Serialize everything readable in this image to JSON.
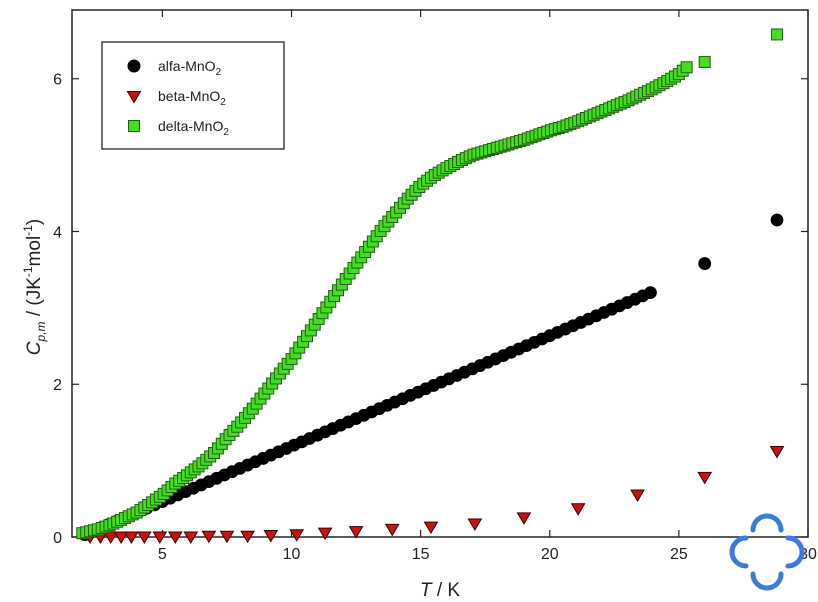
{
  "chart_data": {
    "type": "scatter",
    "xlim": [
      1.5,
      30
    ],
    "ylim": [
      0,
      6.9
    ],
    "x_ticks": [
      5,
      10,
      15,
      20,
      25,
      30
    ],
    "y_ticks": [
      0,
      2,
      4,
      6
    ],
    "grid": false,
    "legend_placement": "top-left",
    "xlabel": {
      "italic": "T",
      "rest": " / K"
    },
    "ylabel": {
      "italic": "C",
      "sub": "p,m",
      "rest": " / (JK",
      "sup1": "-1",
      "mid": "mol",
      "sup2": "-1",
      "end": ")"
    },
    "series": [
      {
        "name": "alfa-MnO2",
        "label_main": "alfa-MnO",
        "label_sub": "2",
        "marker": "circle",
        "color": "#000000",
        "segment": {
          "x_from": 2.0,
          "x_to": 23.9,
          "y_from": 0.03,
          "y_to": 3.2,
          "curve": "linear",
          "step": 0.3
        },
        "points": [
          [
            26.0,
            3.58
          ],
          [
            28.8,
            4.15
          ]
        ]
      },
      {
        "name": "beta-MnO2",
        "label_main": "beta-MnO",
        "label_sub": "2",
        "marker": "triangle-down",
        "color": "#cc1111",
        "points": [
          [
            2.2,
            0.0
          ],
          [
            2.6,
            0.0
          ],
          [
            3.0,
            0.0
          ],
          [
            3.4,
            0.0
          ],
          [
            3.8,
            0.0
          ],
          [
            4.3,
            0.0
          ],
          [
            4.9,
            0.0
          ],
          [
            5.5,
            0.0
          ],
          [
            6.1,
            0.0
          ],
          [
            6.8,
            0.01
          ],
          [
            7.5,
            0.01
          ],
          [
            8.3,
            0.01
          ],
          [
            9.2,
            0.02
          ],
          [
            10.2,
            0.03
          ],
          [
            11.3,
            0.05
          ],
          [
            12.5,
            0.07
          ],
          [
            13.9,
            0.1
          ],
          [
            15.4,
            0.13
          ],
          [
            17.1,
            0.17
          ],
          [
            19.0,
            0.25
          ],
          [
            21.1,
            0.37
          ],
          [
            23.4,
            0.55
          ],
          [
            26.0,
            0.78
          ],
          [
            28.8,
            1.12
          ]
        ]
      },
      {
        "name": "delta-MnO2",
        "label_main": "delta-MnO",
        "label_sub": "2",
        "marker": "square",
        "color": "#44dd22",
        "curve": [
          [
            1.9,
            0.05
          ],
          [
            2.5,
            0.1
          ],
          [
            3.0,
            0.16
          ],
          [
            3.5,
            0.24
          ],
          [
            4.0,
            0.32
          ],
          [
            4.5,
            0.43
          ],
          [
            5.0,
            0.55
          ],
          [
            5.5,
            0.7
          ],
          [
            6.0,
            0.82
          ],
          [
            6.5,
            0.95
          ],
          [
            7.0,
            1.1
          ],
          [
            7.5,
            1.3
          ],
          [
            8.0,
            1.48
          ],
          [
            8.5,
            1.68
          ],
          [
            9.0,
            1.9
          ],
          [
            9.5,
            2.12
          ],
          [
            10.0,
            2.33
          ],
          [
            10.5,
            2.58
          ],
          [
            11.0,
            2.83
          ],
          [
            11.5,
            3.08
          ],
          [
            12.0,
            3.33
          ],
          [
            12.5,
            3.57
          ],
          [
            13.0,
            3.8
          ],
          [
            13.5,
            4.03
          ],
          [
            14.0,
            4.23
          ],
          [
            14.5,
            4.43
          ],
          [
            15.0,
            4.6
          ],
          [
            15.5,
            4.73
          ],
          [
            16.0,
            4.83
          ],
          [
            16.5,
            4.92
          ],
          [
            17.0,
            5.0
          ],
          [
            17.5,
            5.05
          ],
          [
            18.0,
            5.1
          ],
          [
            18.5,
            5.15
          ],
          [
            19.0,
            5.2
          ],
          [
            19.5,
            5.26
          ],
          [
            20.0,
            5.32
          ],
          [
            20.5,
            5.37
          ],
          [
            21.0,
            5.43
          ],
          [
            21.5,
            5.5
          ],
          [
            22.0,
            5.57
          ],
          [
            22.5,
            5.64
          ],
          [
            23.0,
            5.71
          ],
          [
            23.5,
            5.79
          ],
          [
            24.0,
            5.87
          ],
          [
            24.5,
            5.96
          ],
          [
            25.0,
            6.06
          ],
          [
            25.3,
            6.15
          ]
        ],
        "step": 0.15,
        "points": [
          [
            26.0,
            6.22
          ],
          [
            28.8,
            6.58
          ]
        ]
      }
    ]
  },
  "watermark": {
    "color": "#3a7be0"
  }
}
